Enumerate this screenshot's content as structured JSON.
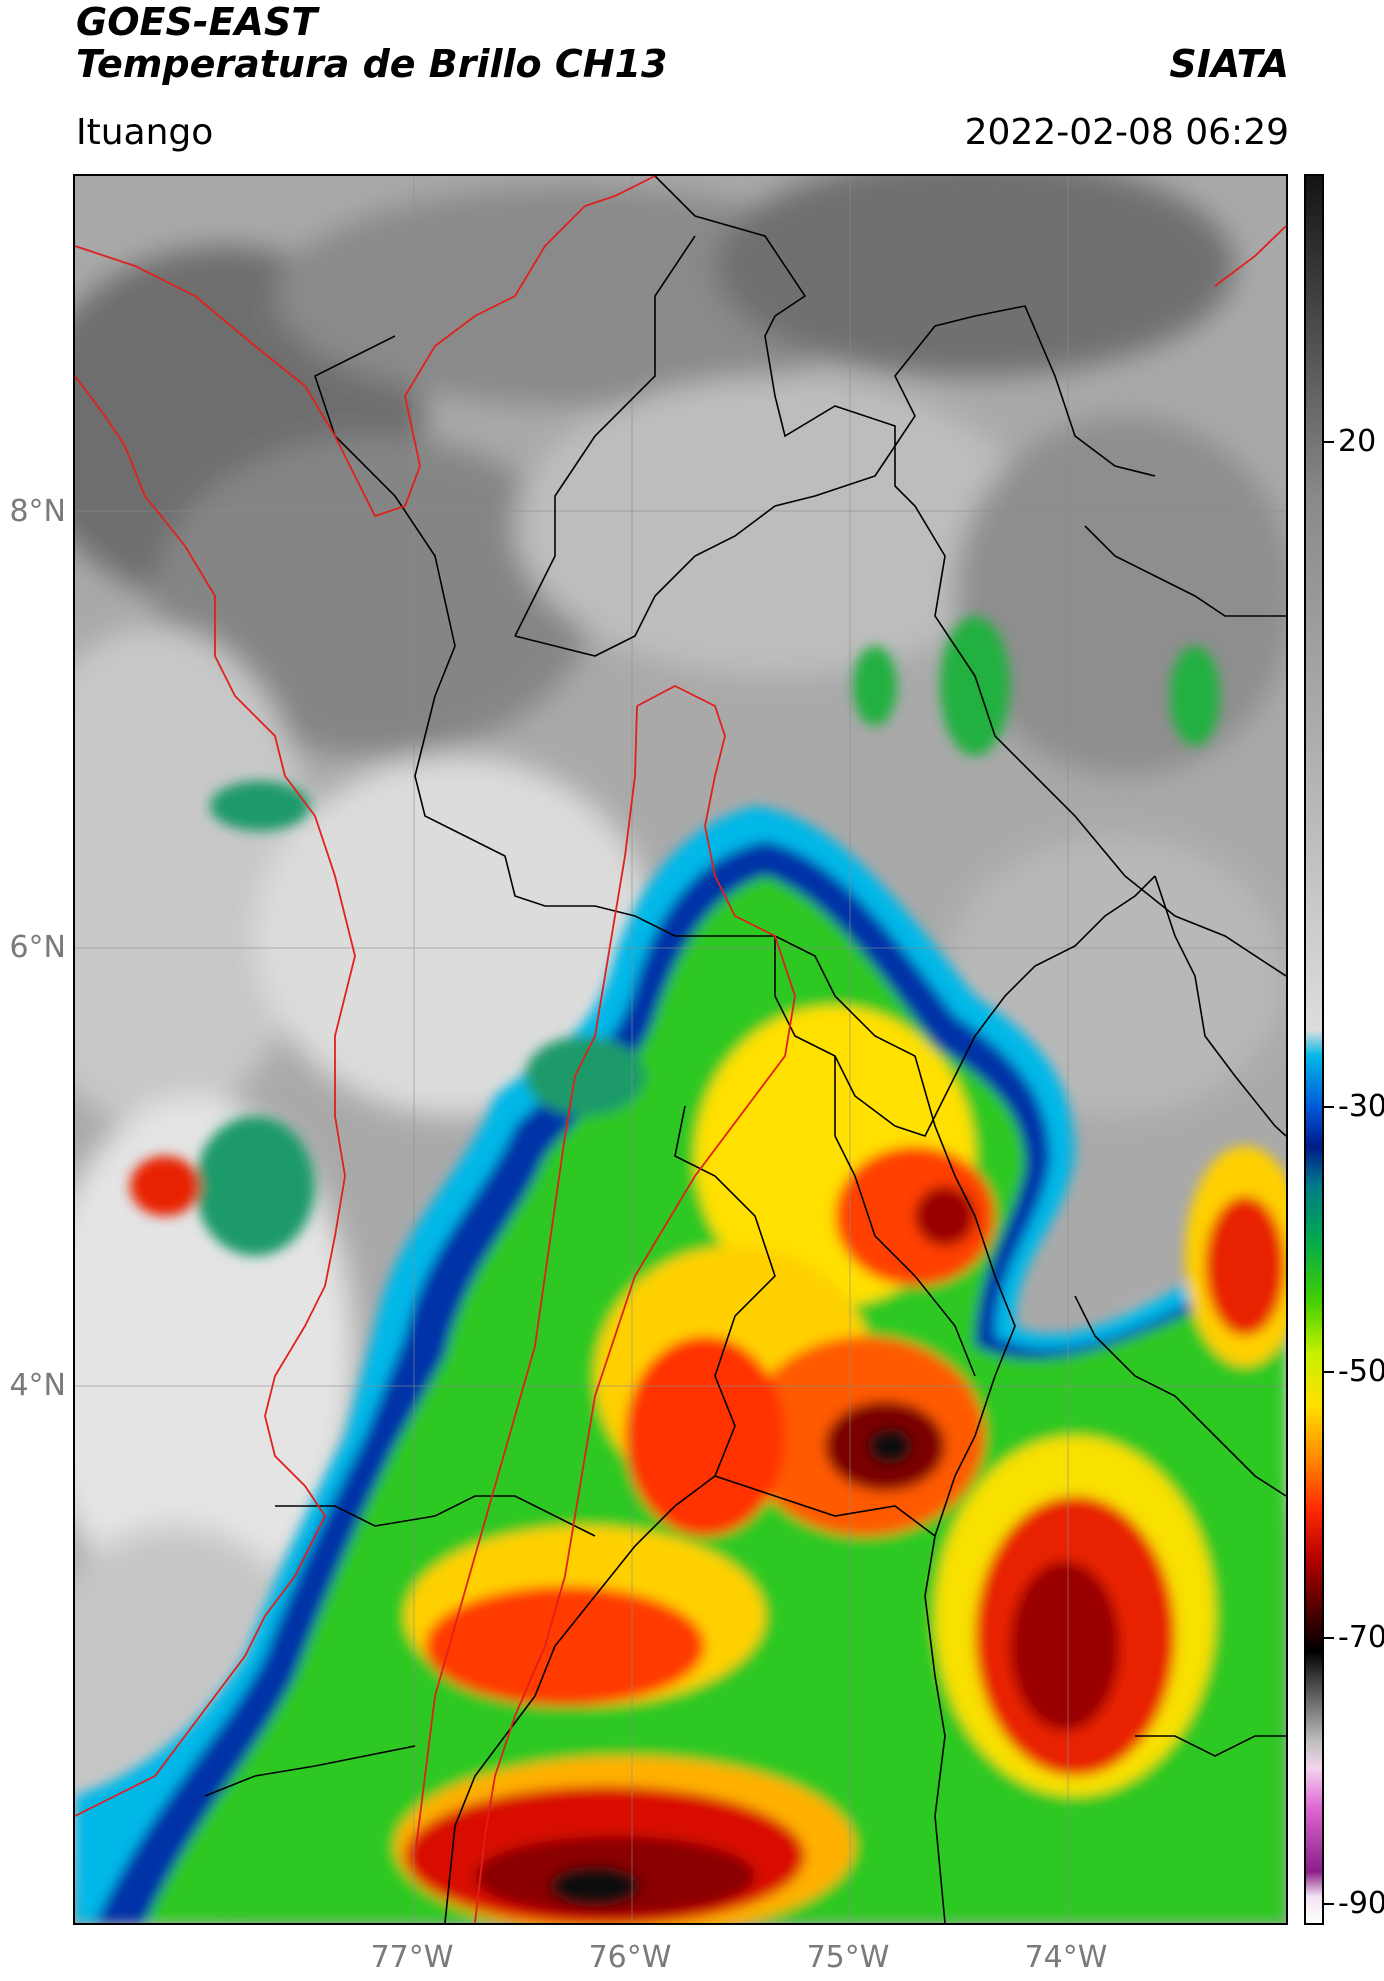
{
  "header": {
    "title_line1": "GOES-EAST",
    "title_line2": "Temperatura de Brillo CH13",
    "organization": "SIATA",
    "location": "Ituango",
    "datetime": "2022-02-08 06:29"
  },
  "map": {
    "lat_labels": [
      "8°N",
      "6°N",
      "4°N"
    ],
    "lon_labels": [
      "77°W",
      "76°W",
      "75°W",
      "74°W"
    ],
    "border_colors": {
      "country": "#e0201c",
      "department": "#000000",
      "grid": "#8c8c8c"
    }
  },
  "colorbar": {
    "tick_labels": [
      "20",
      "-30",
      "-50",
      "-70",
      "-90"
    ],
    "range": [
      -90,
      45
    ],
    "stops": [
      {
        "v": -90,
        "color": "#ffffff"
      },
      {
        "v": -88,
        "color": "#f4e6f2"
      },
      {
        "v": -86,
        "color": "#8a1e88"
      },
      {
        "v": -81,
        "color": "#e06ad4"
      },
      {
        "v": -78,
        "color": "#f2d6ec"
      },
      {
        "v": -76,
        "color": "#bfbfbf"
      },
      {
        "v": -71,
        "color": "#3a3a3a"
      },
      {
        "v": -69,
        "color": "#000000"
      },
      {
        "v": -66,
        "color": "#4a0000"
      },
      {
        "v": -62,
        "color": "#b10000"
      },
      {
        "v": -58,
        "color": "#ff2a00"
      },
      {
        "v": -54,
        "color": "#ff8c00"
      },
      {
        "v": -50,
        "color": "#ffe000"
      },
      {
        "v": -46,
        "color": "#c8f000"
      },
      {
        "v": -42,
        "color": "#44d000"
      },
      {
        "v": -37,
        "color": "#00a850"
      },
      {
        "v": -33,
        "color": "#007a8a"
      },
      {
        "v": -30,
        "color": "#001a8a"
      },
      {
        "v": -27,
        "color": "#0058d8"
      },
      {
        "v": -23,
        "color": "#00b8e8"
      },
      {
        "v": -21,
        "color": "#dddddd"
      },
      {
        "v": 0,
        "color": "#b0b0b0"
      },
      {
        "v": 20,
        "color": "#8a8a8a"
      },
      {
        "v": 45,
        "color": "#141414"
      }
    ]
  }
}
